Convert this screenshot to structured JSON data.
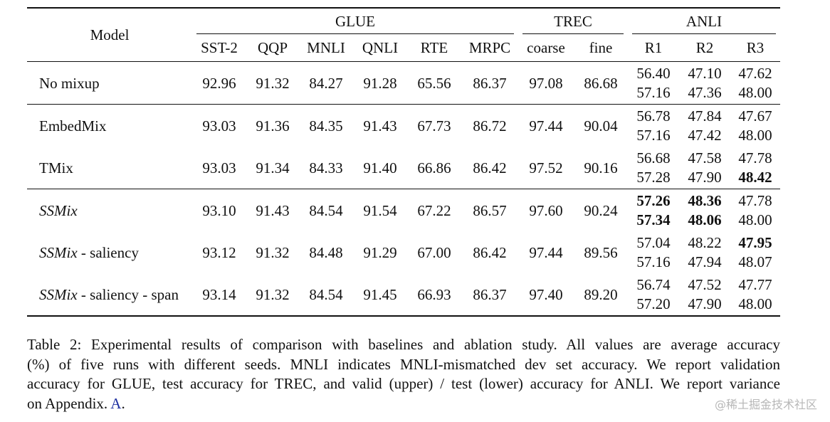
{
  "table": {
    "col_model": "Model",
    "groups": {
      "glue": "GLUE",
      "trec": "TREC",
      "anli": "ANLI"
    },
    "columns": [
      "SST-2",
      "QQP",
      "MNLI",
      "QNLI",
      "RTE",
      "MRPC",
      "coarse",
      "fine",
      "R1",
      "R2",
      "R3"
    ],
    "rows": [
      {
        "model": "No mixup",
        "model_italic": "",
        "model_suffix": "",
        "values": [
          "92.96",
          "91.32",
          "84.27",
          "91.28",
          "65.56",
          "86.37",
          "97.08",
          "86.68"
        ],
        "bold": [
          false,
          false,
          false,
          false,
          false,
          false,
          false,
          false
        ],
        "anli_upper": [
          "56.40",
          "47.10",
          "47.62"
        ],
        "anli_upper_bold": [
          false,
          false,
          false
        ],
        "anli_lower": [
          "57.16",
          "47.36",
          "48.00"
        ],
        "anli_lower_bold": [
          false,
          false,
          false
        ]
      },
      {
        "model": "EmbedMix",
        "model_italic": "",
        "model_suffix": "",
        "values": [
          "93.03",
          "91.36",
          "84.35",
          "91.43",
          "67.73",
          "86.72",
          "97.44",
          "90.04"
        ],
        "bold": [
          false,
          false,
          false,
          false,
          true,
          true,
          false,
          false
        ],
        "anli_upper": [
          "56.78",
          "47.84",
          "47.67"
        ],
        "anli_upper_bold": [
          false,
          false,
          false
        ],
        "anli_lower": [
          "57.16",
          "47.42",
          "48.00"
        ],
        "anli_lower_bold": [
          false,
          false,
          false
        ]
      },
      {
        "model": "TMix",
        "model_italic": "",
        "model_suffix": "",
        "values": [
          "93.03",
          "91.34",
          "84.33",
          "91.40",
          "66.86",
          "86.42",
          "97.52",
          "90.16"
        ],
        "bold": [
          false,
          false,
          false,
          false,
          false,
          false,
          false,
          false
        ],
        "anli_upper": [
          "56.68",
          "47.58",
          "47.78"
        ],
        "anli_upper_bold": [
          false,
          false,
          false
        ],
        "anli_lower": [
          "57.28",
          "47.90",
          "48.42"
        ],
        "anli_lower_bold": [
          false,
          false,
          true
        ]
      },
      {
        "model": "",
        "model_italic": "SSMix",
        "model_suffix": "",
        "values": [
          "93.10",
          "91.43",
          "84.54",
          "91.54",
          "67.22",
          "86.57",
          "97.60",
          "90.24"
        ],
        "bold": [
          false,
          true,
          true,
          true,
          false,
          false,
          true,
          true
        ],
        "anli_upper": [
          "57.26",
          "48.36",
          "47.78"
        ],
        "anli_upper_bold": [
          true,
          true,
          false
        ],
        "anli_lower": [
          "57.34",
          "48.06",
          "48.00"
        ],
        "anli_lower_bold": [
          true,
          true,
          false
        ]
      },
      {
        "model": "",
        "model_italic": "SSMix",
        "model_suffix": " - saliency",
        "values": [
          "93.12",
          "91.32",
          "84.48",
          "91.29",
          "67.00",
          "86.42",
          "97.44",
          "89.56"
        ],
        "bold": [
          false,
          false,
          false,
          false,
          false,
          false,
          false,
          false
        ],
        "anli_upper": [
          "57.04",
          "48.22",
          "47.95"
        ],
        "anli_upper_bold": [
          false,
          false,
          true
        ],
        "anli_lower": [
          "57.16",
          "47.94",
          "48.07"
        ],
        "anli_lower_bold": [
          false,
          false,
          false
        ]
      },
      {
        "model": "",
        "model_italic": "SSMix",
        "model_suffix": " - saliency - span",
        "values": [
          "93.14",
          "91.32",
          "84.54",
          "91.45",
          "66.93",
          "86.37",
          "97.40",
          "89.20"
        ],
        "bold": [
          true,
          false,
          false,
          false,
          false,
          false,
          false,
          false
        ],
        "anli_upper": [
          "56.74",
          "47.52",
          "47.77"
        ],
        "anli_upper_bold": [
          false,
          false,
          false
        ],
        "anli_lower": [
          "57.20",
          "47.90",
          "48.00"
        ],
        "anli_lower_bold": [
          false,
          false,
          false
        ]
      }
    ]
  },
  "caption": {
    "lines": [
      "Table 2: Experimental results of comparison with baselines and ablation study.  All values are average accuracy",
      "(%) of five runs with different seeds. MNLI indicates MNLI-mismatched dev set accuracy. We report validation",
      "accuracy for GLUE, test accuracy for TREC, and valid (upper) / test (lower) accuracy for ANLI. We report variance"
    ],
    "last_line_prefix": "on Appendix. ",
    "last_line_ref": "A",
    "last_line_suffix": "."
  },
  "watermark": "@稀土掘金技术社区"
}
